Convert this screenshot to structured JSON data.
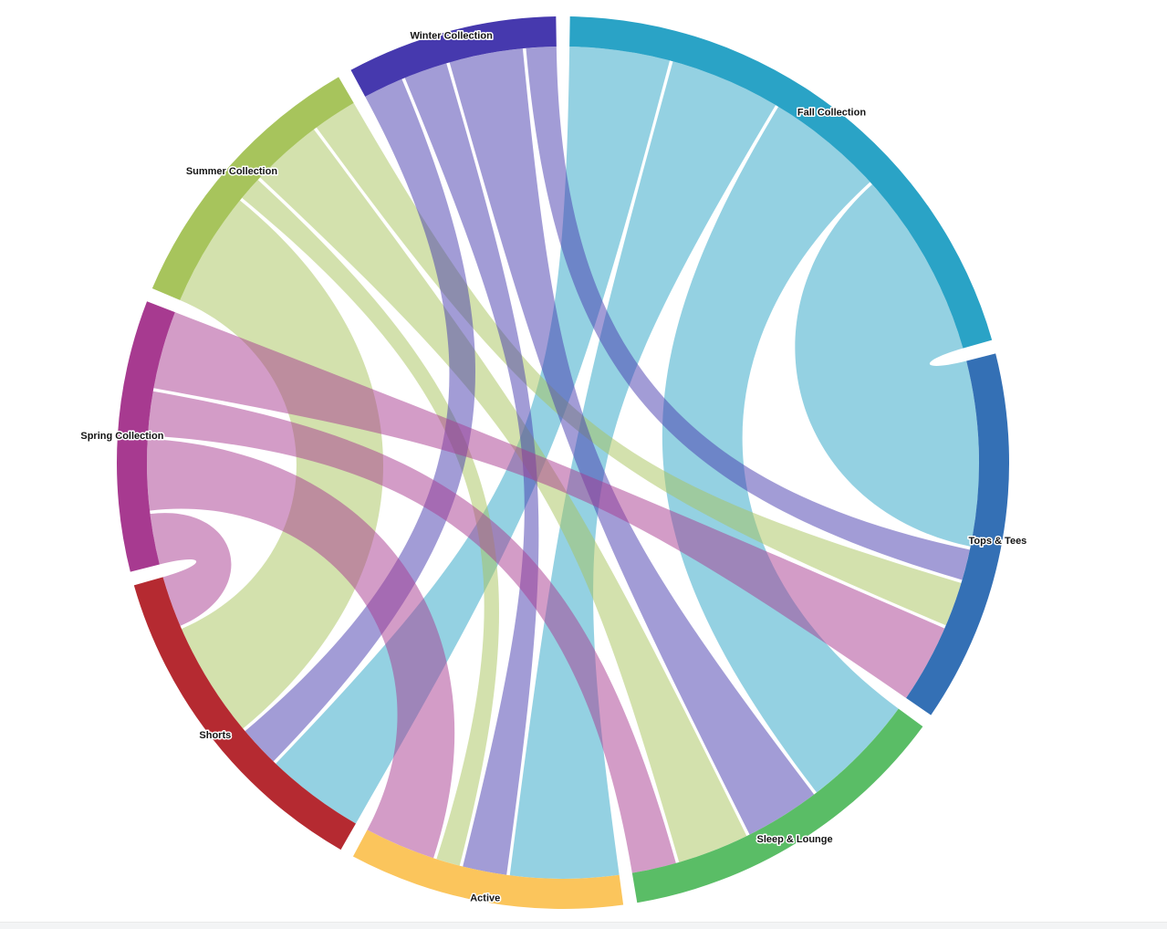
{
  "page": {
    "background_color": "#ffffff",
    "bottom_bar_color": "#f3f4f5"
  },
  "chart_data": {
    "type": "chord",
    "legend_position": "none",
    "axis": "none",
    "ring_order_clockwise_from_top": [
      "Fall Collection",
      "Tops & Tees",
      "Sleep & Lounge",
      "Active",
      "Shorts",
      "Spring Collection",
      "Summer Collection",
      "Winter Collection"
    ],
    "nodes": [
      {
        "label": "Fall Collection",
        "color": "#2aa3c6"
      },
      {
        "label": "Tops & Tees",
        "color": "#3470b5"
      },
      {
        "label": "Sleep & Lounge",
        "color": "#5abd66"
      },
      {
        "label": "Active",
        "color": "#fbc55c"
      },
      {
        "label": "Shorts",
        "color": "#b52a31"
      },
      {
        "label": "Spring Collection",
        "color": "#a73a90"
      },
      {
        "label": "Summer Collection",
        "color": "#a7c45c"
      },
      {
        "label": "Winter Collection",
        "color": "#4639ae"
      }
    ],
    "flows": [
      {
        "source": "Fall Collection",
        "target": "Tops & Tees",
        "value": 270
      },
      {
        "source": "Fall Collection",
        "target": "Sleep & Lounge",
        "value": 170
      },
      {
        "source": "Fall Collection",
        "target": "Active",
        "value": 160
      },
      {
        "source": "Fall Collection",
        "target": "Shorts",
        "value": 145
      },
      {
        "source": "Winter Collection",
        "target": "Tops & Tees",
        "value": 45
      },
      {
        "source": "Winter Collection",
        "target": "Sleep & Lounge",
        "value": 110
      },
      {
        "source": "Winter Collection",
        "target": "Active",
        "value": 65
      },
      {
        "source": "Winter Collection",
        "target": "Shorts",
        "value": 60
      },
      {
        "source": "Summer Collection",
        "target": "Tops & Tees",
        "value": 65
      },
      {
        "source": "Summer Collection",
        "target": "Sleep & Lounge",
        "value": 105
      },
      {
        "source": "Summer Collection",
        "target": "Active",
        "value": 35
      },
      {
        "source": "Summer Collection",
        "target": "Shorts",
        "value": 170
      },
      {
        "source": "Spring Collection",
        "target": "Tops & Tees",
        "value": 115
      },
      {
        "source": "Spring Collection",
        "target": "Sleep & Lounge",
        "value": 65
      },
      {
        "source": "Spring Collection",
        "target": "Active",
        "value": 105
      },
      {
        "source": "Spring Collection",
        "target": "Shorts",
        "value": 75
      }
    ],
    "ribbon_draw_order": [
      "Fall Collection",
      "Summer Collection",
      "Winter Collection",
      "Spring Collection"
    ],
    "style": {
      "ribbon_opacity": 0.5,
      "label_color": "#141414",
      "label_halo_color": "#ffffff"
    }
  }
}
